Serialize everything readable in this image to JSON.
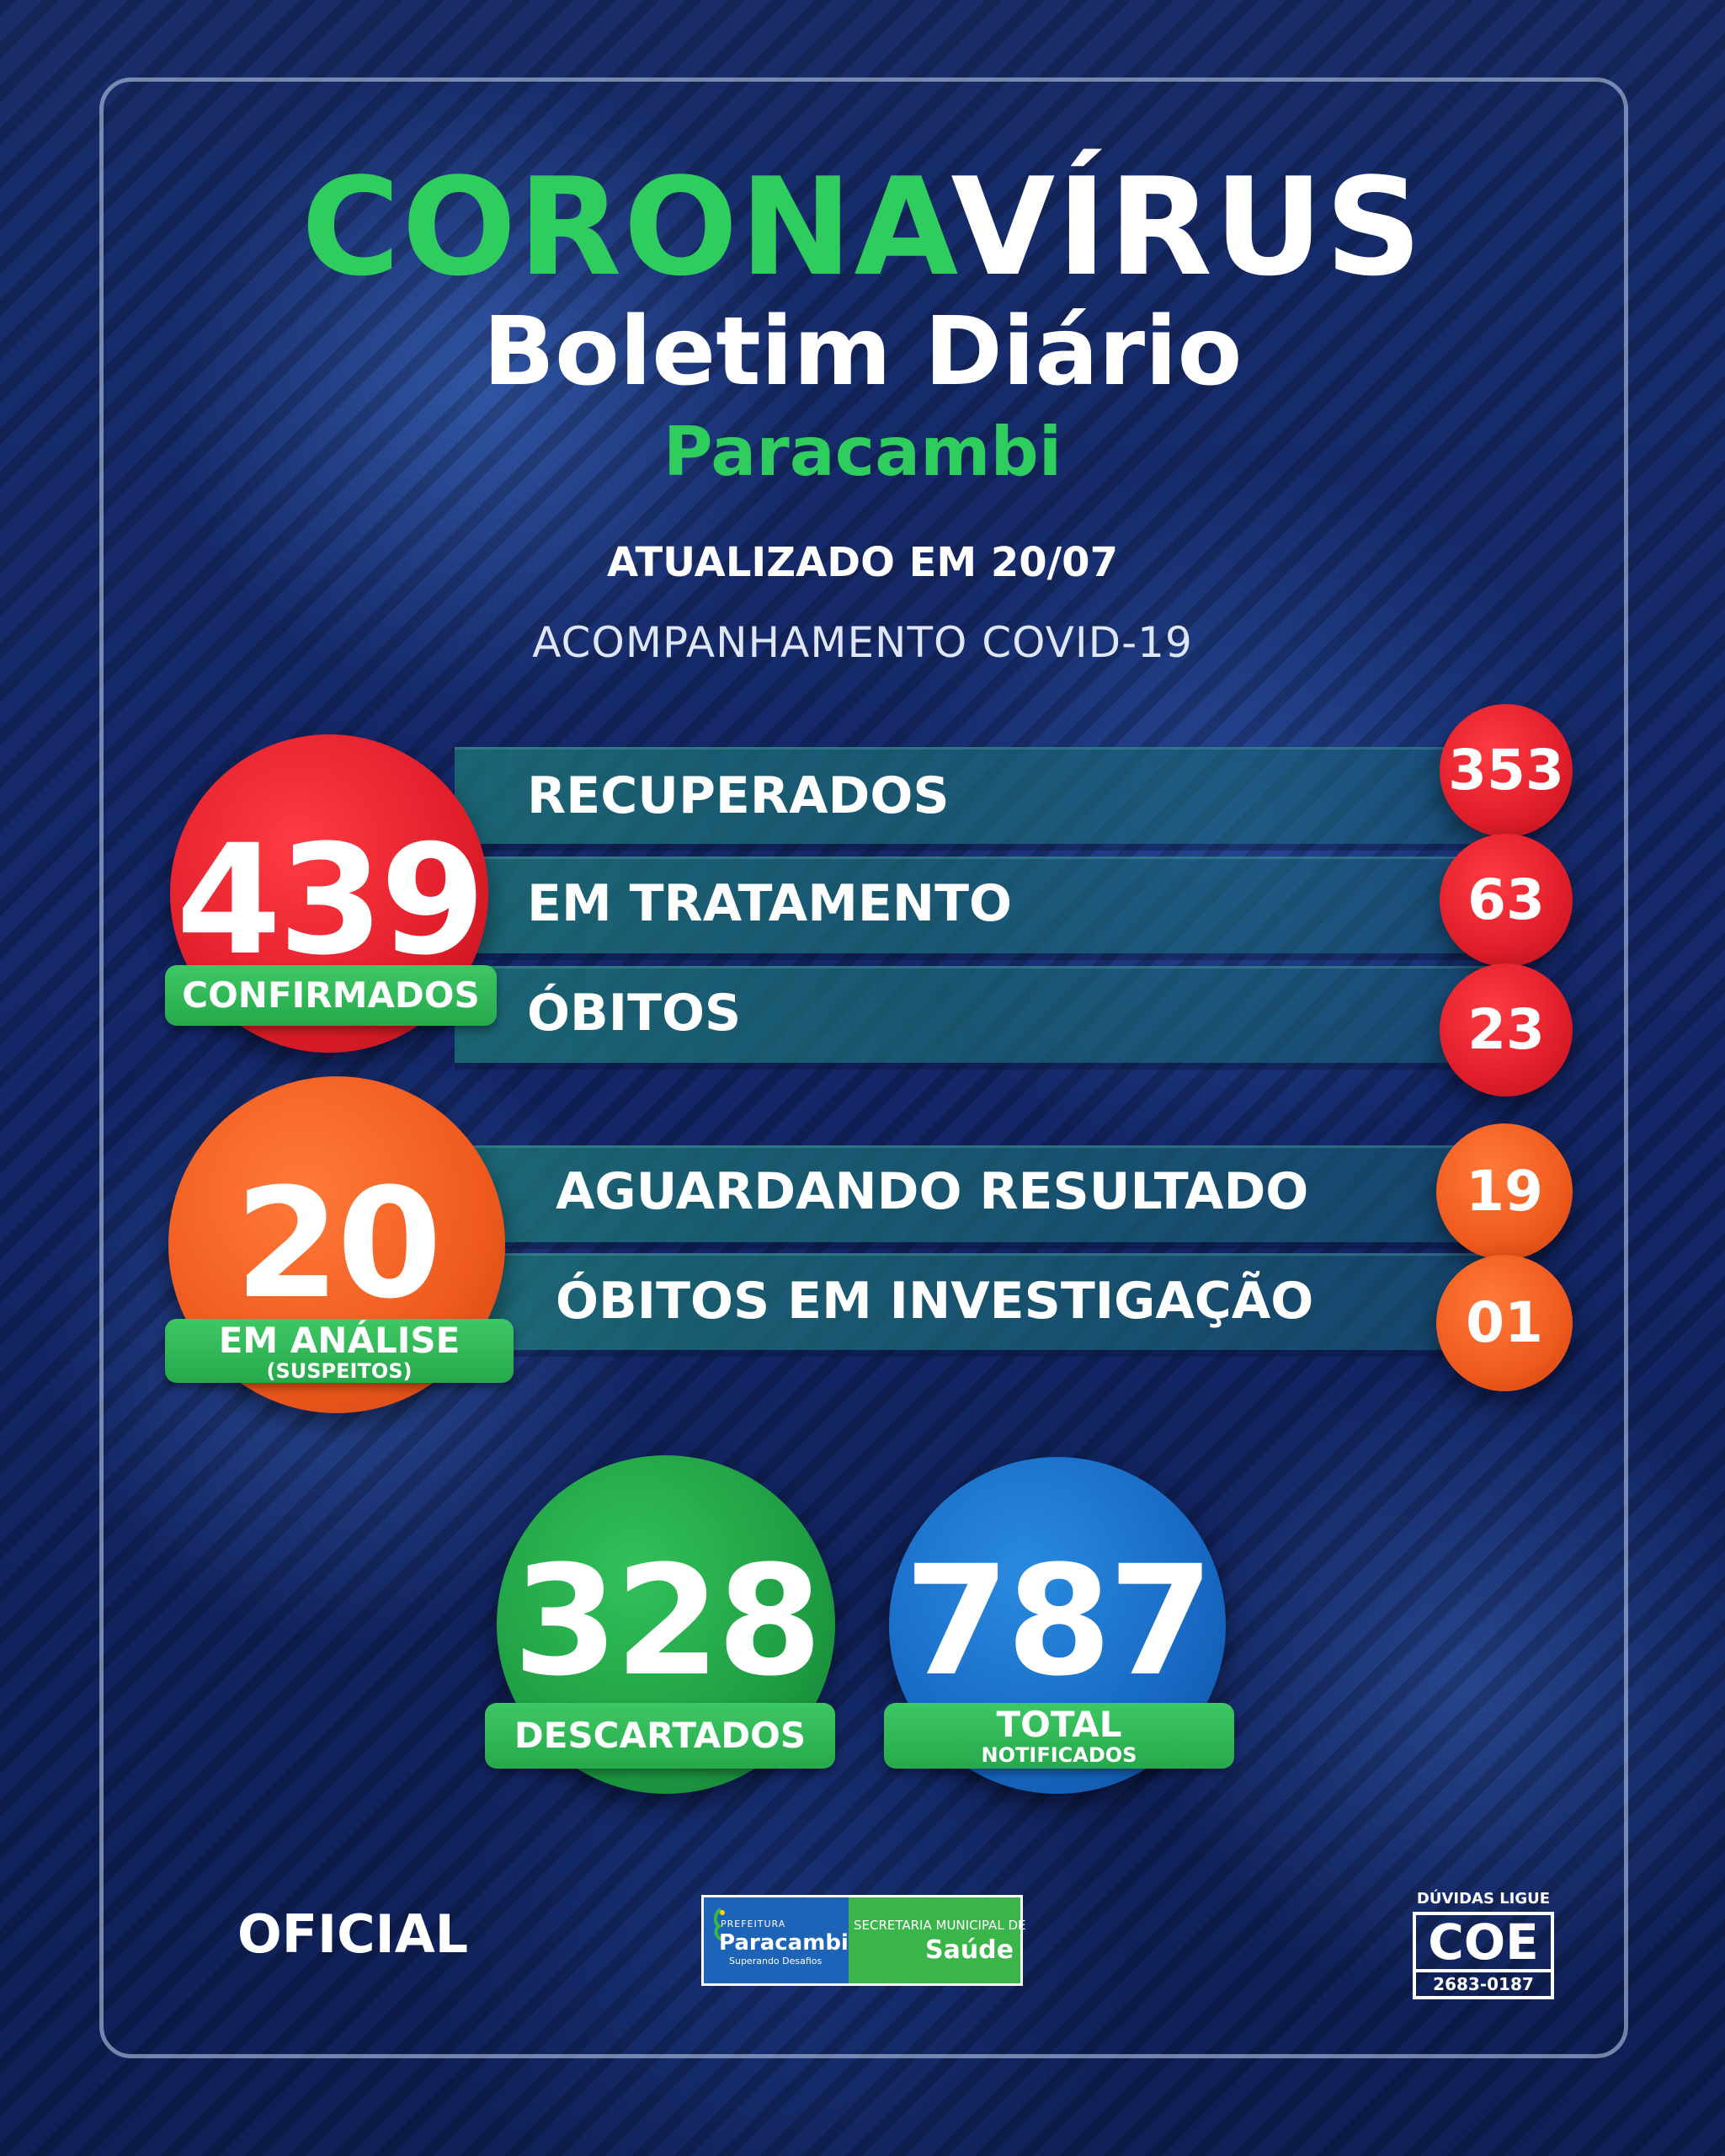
{
  "header": {
    "title_green": "CORONA",
    "title_white": "VÍRUS",
    "subtitle": "Boletim Diário",
    "city": "Paracambi",
    "updated": "ATUALIZADO EM 20/07",
    "tracking": "ACOMPANHAMENTO COVID-19"
  },
  "confirmed": {
    "value": "439",
    "label": "CONFIRMADOS",
    "rows": [
      {
        "label": "RECUPERADOS",
        "value": "353"
      },
      {
        "label": "EM TRATAMENTO",
        "value": "63"
      },
      {
        "label": "ÓBITOS",
        "value": "23"
      }
    ]
  },
  "analysis": {
    "value": "20",
    "label": "EM ANÁLISE",
    "sublabel": "(SUSPEITOS)",
    "rows": [
      {
        "label": "AGUARDANDO RESULTADO",
        "value": "19"
      },
      {
        "label": "ÓBITOS EM INVESTIGAÇÃO",
        "value": "01"
      }
    ]
  },
  "discarded": {
    "value": "328",
    "label": "DESCARTADOS"
  },
  "total": {
    "value": "787",
    "label": "TOTAL",
    "sublabel": "NOTIFICADOS"
  },
  "footer": {
    "official": "OFICIAL",
    "logo": {
      "prefix": "PREFEITURA",
      "name": "Paracambi",
      "slogan": "Superando Desafios",
      "secretaria": "SECRETARIA MUNICIPAL DE",
      "saude": "Saúde"
    },
    "coe": {
      "top": "DÚVIDAS LIGUE",
      "name": "COE",
      "phone": "2683-0187"
    }
  },
  "colors": {
    "green": "#2fcc5e",
    "red": "#e01e2a",
    "orange": "#f05a1e",
    "blue": "#1769c4",
    "background": "#13255a"
  }
}
